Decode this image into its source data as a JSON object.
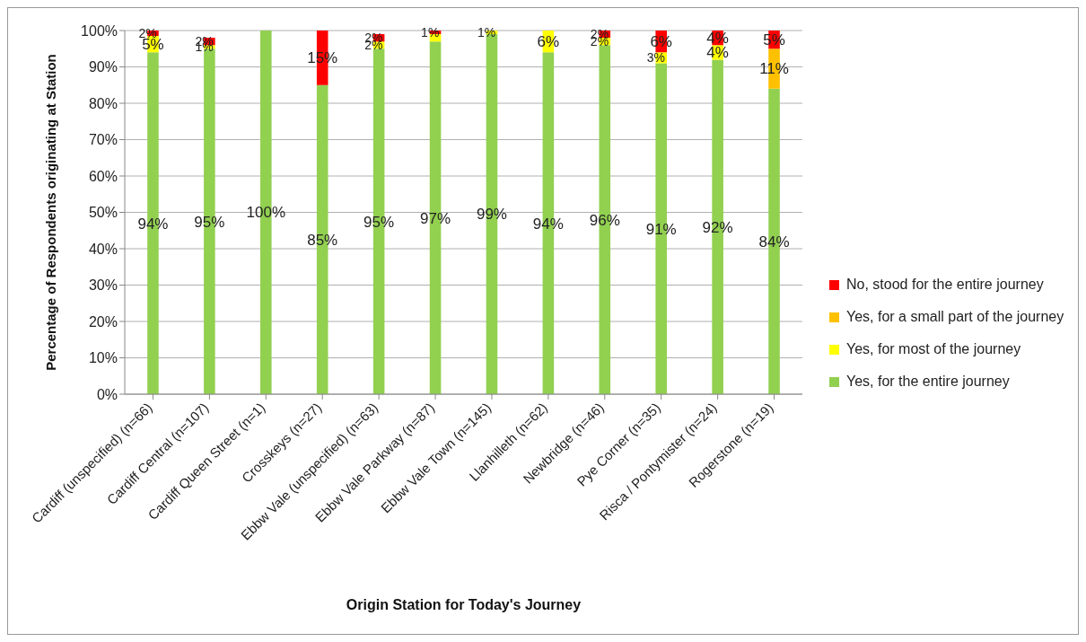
{
  "chart_data": {
    "type": "bar",
    "stacked": true,
    "xlabel": "Origin Station for Today's Journey",
    "ylabel": "Percentage of Respondents originating at Station",
    "categories": [
      "Cardiff (unspecified) (n=66)",
      "Cardiff Central (n=107)",
      "Cardiff Queen Street (n=1)",
      "Crosskeys (n=27)",
      "Ebbw Vale (unspecified) (n=63)",
      "Ebbw Vale Parkway (n=87)",
      "Ebbw Vale Town (n=145)",
      "Llanhilleth (n=62)",
      "Newbridge (n=46)",
      "Pye Corner (n=35)",
      "Risca / Pontymister (n=24)",
      "Rogerstone (n=19)"
    ],
    "series": [
      {
        "name": "Yes, for the entire journey",
        "color": "#92d050",
        "values": [
          94,
          95,
          100,
          85,
          95,
          97,
          99,
          94,
          96,
          91,
          92,
          84
        ],
        "value_labels": [
          "94%",
          "95%",
          "100%",
          "85%",
          "95%",
          "97%",
          "99%",
          "94%",
          "96%",
          "91%",
          "92%",
          "84%"
        ]
      },
      {
        "name": "Yes, for most of the journey",
        "color": "#ffff00",
        "values": [
          4.5,
          1,
          null,
          null,
          2,
          2,
          1,
          6,
          2,
          3,
          4,
          null
        ],
        "value_labels": [
          "5%",
          "1%",
          null,
          null,
          "2%",
          null,
          "1%",
          "6%",
          "2%",
          "3%",
          "4%",
          null
        ]
      },
      {
        "name": "Yes, for a small part of the journey",
        "color": "#ffc000",
        "values": [
          null,
          null,
          null,
          null,
          null,
          null,
          null,
          null,
          null,
          null,
          null,
          11
        ],
        "value_labels": [
          null,
          null,
          null,
          null,
          null,
          null,
          null,
          null,
          null,
          null,
          null,
          "11%"
        ]
      },
      {
        "name": "No, stood for the entire journey",
        "color": "#ff0000",
        "values": [
          1.5,
          2,
          null,
          15,
          2,
          1,
          null,
          null,
          2,
          6,
          4,
          5
        ],
        "value_labels": [
          "2%",
          "2%",
          null,
          "15%",
          "2%",
          "1%",
          null,
          null,
          "2%",
          "6%",
          "4%",
          "5%"
        ]
      }
    ],
    "ylim": [
      0,
      100
    ],
    "yticks": [
      {
        "value": 0,
        "label": "0%"
      },
      {
        "value": 10,
        "label": "10%"
      },
      {
        "value": 20,
        "label": "20%"
      },
      {
        "value": 30,
        "label": "30%"
      },
      {
        "value": 40,
        "label": "40%"
      },
      {
        "value": 50,
        "label": "50%"
      },
      {
        "value": 60,
        "label": "60%"
      },
      {
        "value": 70,
        "label": "70%"
      },
      {
        "value": 80,
        "label": "80%"
      },
      {
        "value": 90,
        "label": "90%"
      },
      {
        "value": 100,
        "label": "100%"
      }
    ],
    "grid": "y",
    "legend": "right"
  }
}
